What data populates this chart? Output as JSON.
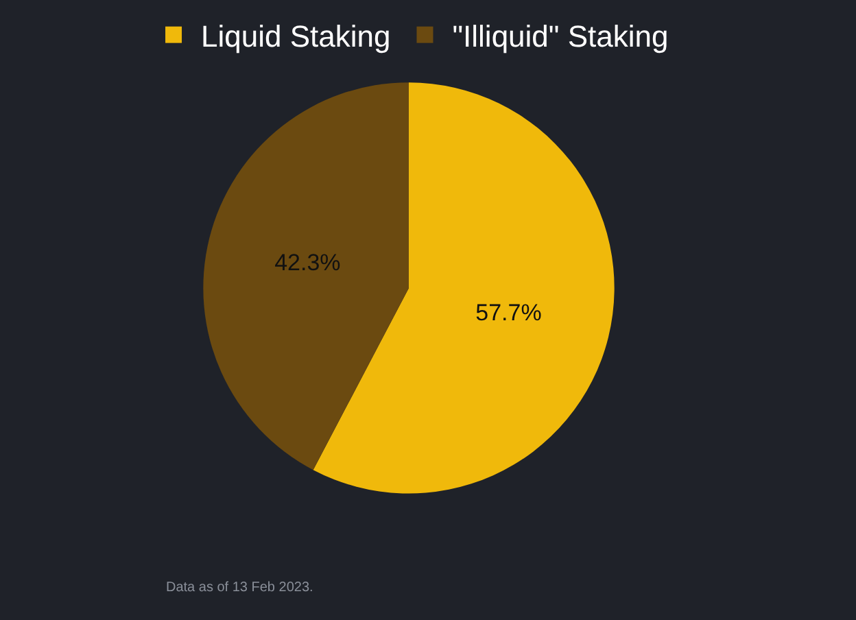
{
  "chart_data": {
    "type": "pie",
    "categories": [
      "Liquid Staking",
      "\"Illiquid\" Staking"
    ],
    "values": [
      57.7,
      42.3
    ],
    "colors": [
      "#f0b90b",
      "#6b4a10"
    ],
    "value_labels": [
      "57.7%",
      "42.3%"
    ],
    "legend": "top",
    "annotations": [
      "Data as of 13 Feb 2023."
    ]
  }
}
